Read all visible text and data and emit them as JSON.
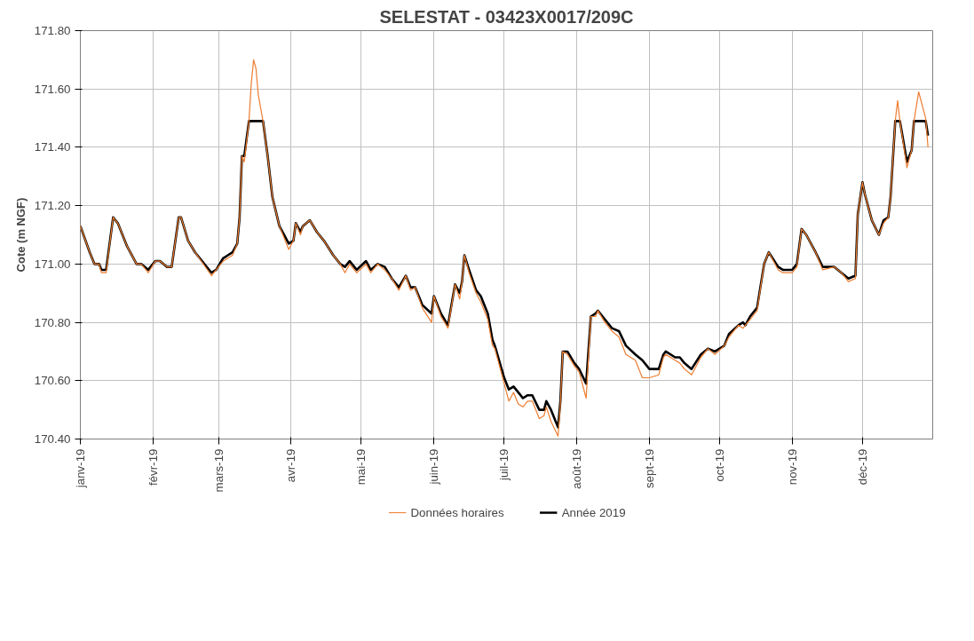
{
  "chart_data": {
    "type": "line",
    "title": "SELESTAT - 03423X0017/209C",
    "ylabel": "Cote (m NGF)",
    "xlim": [
      "2019-01-01",
      "2019-12-31"
    ],
    "xticks": [
      {
        "value": "2019-01-01",
        "label": "janv-19"
      },
      {
        "value": "2019-02-01",
        "label": "févr-19"
      },
      {
        "value": "2019-03-01",
        "label": "mars-19"
      },
      {
        "value": "2019-04-01",
        "label": "avr-19"
      },
      {
        "value": "2019-05-01",
        "label": "mai-19"
      },
      {
        "value": "2019-06-01",
        "label": "juin-19"
      },
      {
        "value": "2019-07-01",
        "label": "juil-19"
      },
      {
        "value": "2019-08-01",
        "label": "août-19"
      },
      {
        "value": "2019-09-01",
        "label": "sept-19"
      },
      {
        "value": "2019-10-01",
        "label": "oct-19"
      },
      {
        "value": "2019-11-01",
        "label": "nov-19"
      },
      {
        "value": "2019-12-01",
        "label": "déc-19"
      }
    ],
    "ylim": [
      170.4,
      171.8
    ],
    "yticks": [
      {
        "value": 170.4,
        "label": "170.40"
      },
      {
        "value": 170.6,
        "label": "170.60"
      },
      {
        "value": 170.8,
        "label": "170.80"
      },
      {
        "value": 171.0,
        "label": "171.00"
      },
      {
        "value": 171.2,
        "label": "171.20"
      },
      {
        "value": 171.4,
        "label": "171.40"
      },
      {
        "value": 171.6,
        "label": "171.60"
      },
      {
        "value": 171.8,
        "label": "171.80"
      }
    ],
    "grid": true,
    "legend": "bottom",
    "line_style": "solid",
    "series": [
      {
        "name": "Données horaires",
        "color": "#ed7d31",
        "x": [
          "2019-01-01",
          "2019-01-05",
          "2019-01-07",
          "2019-01-09",
          "2019-01-10",
          "2019-01-12",
          "2019-01-15",
          "2019-01-17",
          "2019-01-21",
          "2019-01-25",
          "2019-01-27",
          "2019-01-30",
          "2019-02-02",
          "2019-02-04",
          "2019-02-07",
          "2019-02-09",
          "2019-02-12",
          "2019-02-13",
          "2019-02-16",
          "2019-02-19",
          "2019-02-26",
          "2019-02-28",
          "2019-03-03",
          "2019-03-05",
          "2019-03-07",
          "2019-03-09",
          "2019-03-10",
          "2019-03-11",
          "2019-03-12",
          "2019-03-14",
          "2019-03-15",
          "2019-03-16",
          "2019-03-17",
          "2019-03-18",
          "2019-03-20",
          "2019-03-22",
          "2019-03-24",
          "2019-03-27",
          "2019-03-31",
          "2019-04-02",
          "2019-04-03",
          "2019-04-05",
          "2019-04-06",
          "2019-04-09",
          "2019-04-12",
          "2019-04-15",
          "2019-04-19",
          "2019-04-22",
          "2019-04-24",
          "2019-04-26",
          "2019-04-29",
          "2019-05-03",
          "2019-05-05",
          "2019-05-08",
          "2019-05-11",
          "2019-05-14",
          "2019-05-17",
          "2019-05-20",
          "2019-05-22",
          "2019-05-24",
          "2019-05-27",
          "2019-05-31",
          "2019-06-01",
          "2019-06-04",
          "2019-06-07",
          "2019-06-10",
          "2019-06-12",
          "2019-06-13",
          "2019-06-14",
          "2019-06-16",
          "2019-06-19",
          "2019-06-21",
          "2019-06-24",
          "2019-06-26",
          "2019-06-27",
          "2019-07-01",
          "2019-07-03",
          "2019-07-05",
          "2019-07-07",
          "2019-07-09",
          "2019-07-11",
          "2019-07-13",
          "2019-07-16",
          "2019-07-18",
          "2019-07-19",
          "2019-07-21",
          "2019-07-24",
          "2019-07-25",
          "2019-07-26",
          "2019-07-28",
          "2019-07-31",
          "2019-08-02",
          "2019-08-05",
          "2019-08-07",
          "2019-08-09",
          "2019-08-10",
          "2019-08-13",
          "2019-08-16",
          "2019-08-19",
          "2019-08-22",
          "2019-08-26",
          "2019-08-29",
          "2019-09-01",
          "2019-09-05",
          "2019-09-07",
          "2019-09-08",
          "2019-09-12",
          "2019-09-14",
          "2019-09-16",
          "2019-09-19",
          "2019-09-23",
          "2019-09-26",
          "2019-09-29",
          "2019-10-03",
          "2019-10-05",
          "2019-10-09",
          "2019-10-11",
          "2019-10-12",
          "2019-10-14",
          "2019-10-17",
          "2019-10-20",
          "2019-10-22",
          "2019-10-26",
          "2019-10-28",
          "2019-11-01",
          "2019-11-03",
          "2019-11-05",
          "2019-11-07",
          "2019-11-11",
          "2019-11-14",
          "2019-11-19",
          "2019-11-22",
          "2019-11-25",
          "2019-11-28",
          "2019-11-29",
          "2019-12-01",
          "2019-12-02",
          "2019-12-05",
          "2019-12-08",
          "2019-12-10",
          "2019-12-12",
          "2019-12-13",
          "2019-12-15",
          "2019-12-16",
          "2019-12-17",
          "2019-12-20",
          "2019-12-22",
          "2019-12-23",
          "2019-12-25",
          "2019-12-28",
          "2019-12-29"
        ],
        "values": [
          171.13,
          171.04,
          171.0,
          171.0,
          170.97,
          170.97,
          171.16,
          171.14,
          171.06,
          171.0,
          171.0,
          170.97,
          171.01,
          171.01,
          170.99,
          170.99,
          171.16,
          171.16,
          171.08,
          171.04,
          170.96,
          170.98,
          171.01,
          171.02,
          171.03,
          171.07,
          171.16,
          171.37,
          171.35,
          171.49,
          171.62,
          171.7,
          171.67,
          171.58,
          171.49,
          171.37,
          171.23,
          171.13,
          171.05,
          171.08,
          171.14,
          171.1,
          171.13,
          171.15,
          171.11,
          171.08,
          171.03,
          171.0,
          170.97,
          171.0,
          170.97,
          171.0,
          170.97,
          171.0,
          170.98,
          170.95,
          170.91,
          170.96,
          170.91,
          170.92,
          170.85,
          170.8,
          170.89,
          170.82,
          170.78,
          170.93,
          170.88,
          170.94,
          171.03,
          170.97,
          170.9,
          170.87,
          170.81,
          170.72,
          170.71,
          170.59,
          170.53,
          170.56,
          170.52,
          170.51,
          170.53,
          170.53,
          170.47,
          170.48,
          170.51,
          170.46,
          170.41,
          170.52,
          170.7,
          170.69,
          170.65,
          170.63,
          170.54,
          170.82,
          170.82,
          170.84,
          170.8,
          170.77,
          170.75,
          170.69,
          170.67,
          170.61,
          170.61,
          170.62,
          170.68,
          170.69,
          170.67,
          170.66,
          170.64,
          170.62,
          170.68,
          170.71,
          170.69,
          170.72,
          170.75,
          170.79,
          170.78,
          170.79,
          170.81,
          170.84,
          171.0,
          171.04,
          170.98,
          170.97,
          170.97,
          170.99,
          171.12,
          171.1,
          171.04,
          170.98,
          170.99,
          170.97,
          170.94,
          170.95,
          171.17,
          171.28,
          171.24,
          171.15,
          171.1,
          171.14,
          171.16,
          171.23,
          171.49,
          171.56,
          171.49,
          171.33,
          171.39,
          171.49,
          171.59,
          171.5,
          171.4
        ]
      },
      {
        "name": "Année 2019",
        "color": "#000000",
        "x": [
          "2019-01-01",
          "2019-01-05",
          "2019-01-07",
          "2019-01-09",
          "2019-01-10",
          "2019-01-12",
          "2019-01-15",
          "2019-01-17",
          "2019-01-21",
          "2019-01-25",
          "2019-01-27",
          "2019-01-30",
          "2019-02-02",
          "2019-02-04",
          "2019-02-07",
          "2019-02-09",
          "2019-02-12",
          "2019-02-13",
          "2019-02-16",
          "2019-02-19",
          "2019-02-26",
          "2019-02-28",
          "2019-03-03",
          "2019-03-05",
          "2019-03-07",
          "2019-03-09",
          "2019-03-10",
          "2019-03-11",
          "2019-03-12",
          "2019-03-14",
          "2019-03-20",
          "2019-03-22",
          "2019-03-24",
          "2019-03-27",
          "2019-03-31",
          "2019-04-02",
          "2019-04-03",
          "2019-04-05",
          "2019-04-06",
          "2019-04-09",
          "2019-04-12",
          "2019-04-15",
          "2019-04-19",
          "2019-04-22",
          "2019-04-24",
          "2019-04-26",
          "2019-04-29",
          "2019-05-03",
          "2019-05-05",
          "2019-05-08",
          "2019-05-11",
          "2019-05-14",
          "2019-05-17",
          "2019-05-20",
          "2019-05-22",
          "2019-05-24",
          "2019-05-27",
          "2019-05-31",
          "2019-06-01",
          "2019-06-04",
          "2019-06-07",
          "2019-06-10",
          "2019-06-12",
          "2019-06-13",
          "2019-06-14",
          "2019-06-16",
          "2019-06-19",
          "2019-06-21",
          "2019-06-24",
          "2019-06-26",
          "2019-06-27",
          "2019-07-01",
          "2019-07-03",
          "2019-07-05",
          "2019-07-07",
          "2019-07-09",
          "2019-07-11",
          "2019-07-13",
          "2019-07-16",
          "2019-07-18",
          "2019-07-19",
          "2019-07-21",
          "2019-07-24",
          "2019-07-25",
          "2019-07-26",
          "2019-07-28",
          "2019-07-31",
          "2019-08-02",
          "2019-08-05",
          "2019-08-07",
          "2019-08-09",
          "2019-08-10",
          "2019-08-13",
          "2019-08-16",
          "2019-08-19",
          "2019-08-22",
          "2019-08-26",
          "2019-08-29",
          "2019-09-01",
          "2019-09-05",
          "2019-09-07",
          "2019-09-08",
          "2019-09-12",
          "2019-09-14",
          "2019-09-16",
          "2019-09-19",
          "2019-09-23",
          "2019-09-26",
          "2019-09-29",
          "2019-10-03",
          "2019-10-05",
          "2019-10-09",
          "2019-10-11",
          "2019-10-12",
          "2019-10-14",
          "2019-10-17",
          "2019-10-20",
          "2019-10-22",
          "2019-10-26",
          "2019-10-28",
          "2019-11-01",
          "2019-11-03",
          "2019-11-05",
          "2019-11-07",
          "2019-11-11",
          "2019-11-14",
          "2019-11-19",
          "2019-11-22",
          "2019-11-25",
          "2019-11-28",
          "2019-11-29",
          "2019-12-01",
          "2019-12-02",
          "2019-12-05",
          "2019-12-08",
          "2019-12-10",
          "2019-12-12",
          "2019-12-13",
          "2019-12-15",
          "2019-12-17",
          "2019-12-20",
          "2019-12-22",
          "2019-12-23",
          "2019-12-28",
          "2019-12-29"
        ],
        "values": [
          171.13,
          171.04,
          171.0,
          171.0,
          170.98,
          170.98,
          171.16,
          171.14,
          171.06,
          171.0,
          171.0,
          170.98,
          171.01,
          171.01,
          170.99,
          170.99,
          171.16,
          171.16,
          171.08,
          171.04,
          170.97,
          170.98,
          171.02,
          171.03,
          171.04,
          171.07,
          171.16,
          171.37,
          171.37,
          171.49,
          171.49,
          171.37,
          171.23,
          171.13,
          171.07,
          171.08,
          171.14,
          171.11,
          171.13,
          171.15,
          171.11,
          171.08,
          171.03,
          171.0,
          170.99,
          171.01,
          170.98,
          171.01,
          170.98,
          171.0,
          170.99,
          170.95,
          170.92,
          170.96,
          170.92,
          170.92,
          170.86,
          170.83,
          170.89,
          170.83,
          170.79,
          170.93,
          170.9,
          170.94,
          171.03,
          170.98,
          170.91,
          170.89,
          170.83,
          170.74,
          170.72,
          170.61,
          170.57,
          170.58,
          170.56,
          170.54,
          170.55,
          170.55,
          170.5,
          170.5,
          170.53,
          170.5,
          170.44,
          170.53,
          170.7,
          170.7,
          170.66,
          170.64,
          170.59,
          170.82,
          170.83,
          170.84,
          170.81,
          170.78,
          170.77,
          170.72,
          170.69,
          170.67,
          170.64,
          170.64,
          170.69,
          170.7,
          170.68,
          170.68,
          170.66,
          170.64,
          170.69,
          170.71,
          170.7,
          170.72,
          170.76,
          170.79,
          170.8,
          170.79,
          170.82,
          170.85,
          171.0,
          171.04,
          170.99,
          170.98,
          170.98,
          171.0,
          171.12,
          171.1,
          171.04,
          170.99,
          170.99,
          170.97,
          170.95,
          170.96,
          171.17,
          171.28,
          171.24,
          171.15,
          171.1,
          171.15,
          171.16,
          171.23,
          171.49,
          171.49,
          171.35,
          171.39,
          171.49,
          171.49,
          171.44
        ]
      }
    ]
  }
}
